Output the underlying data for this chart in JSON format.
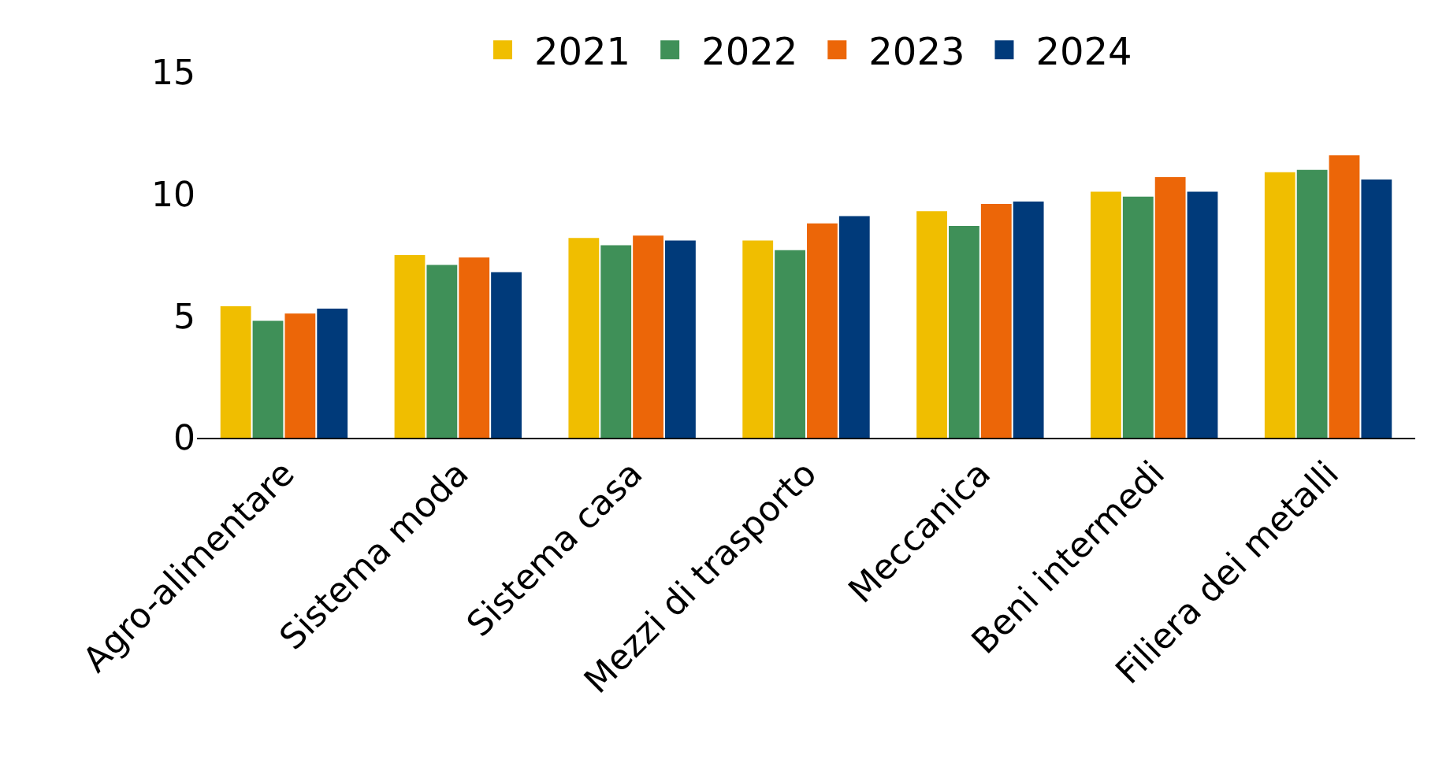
{
  "chart_data": {
    "type": "bar",
    "categories": [
      "Agro-alimentare",
      "Sistema moda",
      "Sistema casa",
      "Mezzi di trasporto",
      "Meccanica",
      "Beni intermedi",
      "Filiera dei metalli"
    ],
    "series": [
      {
        "name": "2021",
        "color": "#f0be00",
        "values": [
          5.4,
          7.5,
          8.2,
          8.1,
          9.3,
          10.1,
          10.9
        ]
      },
      {
        "name": "2022",
        "color": "#3f9058",
        "values": [
          4.8,
          7.1,
          7.9,
          7.7,
          8.7,
          9.9,
          11.0
        ]
      },
      {
        "name": "2023",
        "color": "#ec6608",
        "values": [
          5.1,
          7.4,
          8.3,
          8.8,
          9.6,
          10.7,
          11.6
        ]
      },
      {
        "name": "2024",
        "color": "#003a7a",
        "values": [
          5.3,
          6.8,
          8.1,
          9.1,
          9.7,
          10.1,
          10.6
        ]
      }
    ],
    "ylim": [
      0,
      15
    ],
    "yticks": [
      0,
      5,
      10,
      15
    ],
    "grid": false,
    "legend": "top"
  }
}
